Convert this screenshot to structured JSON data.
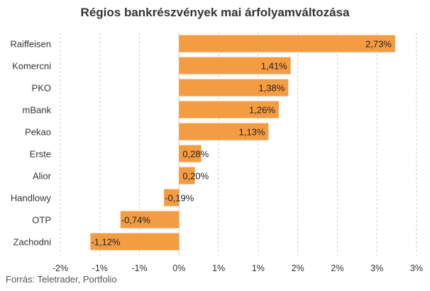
{
  "chart_data": {
    "type": "bar",
    "orientation": "horizontal",
    "title": "Régios bankrészvények mai árfolyamváltozása",
    "categories": [
      "Raiffeisen",
      "Komercni",
      "PKO",
      "mBank",
      "Pekao",
      "Erste",
      "Alior",
      "Handlowy",
      "OTP",
      "Zachodni"
    ],
    "values": [
      2.73,
      1.41,
      1.38,
      1.26,
      1.13,
      0.28,
      0.2,
      -0.19,
      -0.74,
      -1.12
    ],
    "value_labels": [
      "2,73%",
      "1,41%",
      "1,38%",
      "1,26%",
      "1,13%",
      "0,28%",
      "0,20%",
      "-0,19%",
      "-0,74%",
      "-1,12%"
    ],
    "x_ticks": [
      -1.5,
      -1.0,
      -0.5,
      0,
      0.5,
      1.0,
      1.5,
      2.0,
      2.5,
      3.0
    ],
    "x_tick_labels": [
      "-2%",
      "-1%",
      "-1%",
      "0%",
      "1%",
      "1%",
      "2%",
      "2%",
      "3%",
      "3%"
    ],
    "xlim": [
      -1.5,
      3.0
    ],
    "grid": true,
    "bar_color": "#F39C42",
    "gridline_color": "#CCCCCC"
  },
  "source_note": "Forrás: Teletrader, Portfolio"
}
